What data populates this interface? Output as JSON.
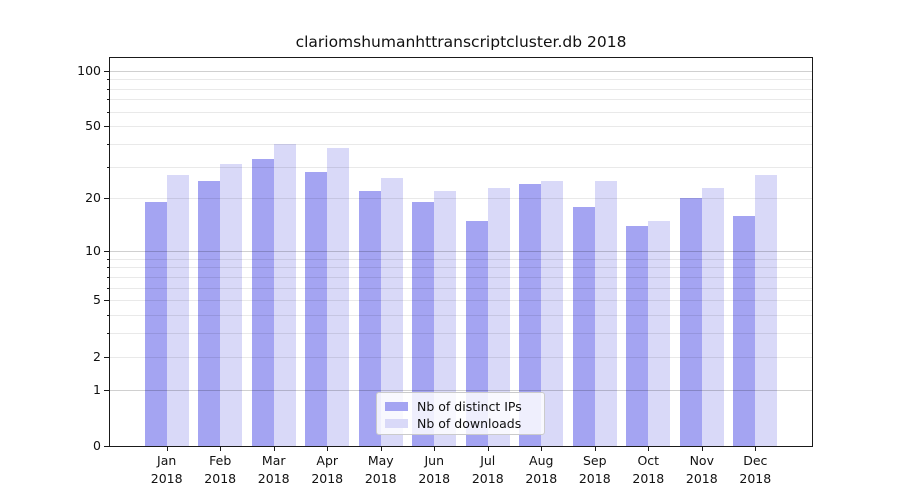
{
  "chart_data": {
    "type": "bar",
    "title": "clariomshumanhttranscriptcluster.db 2018",
    "categories": [
      "Jan",
      "Feb",
      "Mar",
      "Apr",
      "May",
      "Jun",
      "Jul",
      "Aug",
      "Sep",
      "Oct",
      "Nov",
      "Dec"
    ],
    "category_year": "2018",
    "series": [
      {
        "name": "Nb of distinct IPs",
        "color": "#a4a4f2",
        "values": [
          19,
          25,
          33,
          28,
          22,
          19,
          15,
          24,
          18,
          14,
          20,
          16
        ]
      },
      {
        "name": "Nb of downloads",
        "color": "#d9d9f8",
        "values": [
          27,
          31,
          40,
          38,
          26,
          22,
          23,
          25,
          25,
          15,
          23,
          27
        ]
      }
    ],
    "xlabel": "",
    "ylabel": "",
    "y_scale": "log1p",
    "ylim": [
      0,
      117
    ],
    "y_ticks": [
      100,
      50,
      20,
      10,
      5,
      2,
      1,
      0
    ],
    "grid": {
      "on": true,
      "major_lines": [
        1,
        10,
        100
      ],
      "minor_lines": [
        2,
        3,
        4,
        5,
        6,
        7,
        8,
        9,
        20,
        30,
        40,
        50,
        60,
        70,
        80,
        90
      ]
    },
    "legend": {
      "position": "lower center, inside plot",
      "entries": [
        "Nb of distinct IPs",
        "Nb of downloads"
      ]
    },
    "colors": {
      "background": "#ffffff",
      "axis": "#1a1a1a",
      "text": "#111111"
    }
  }
}
